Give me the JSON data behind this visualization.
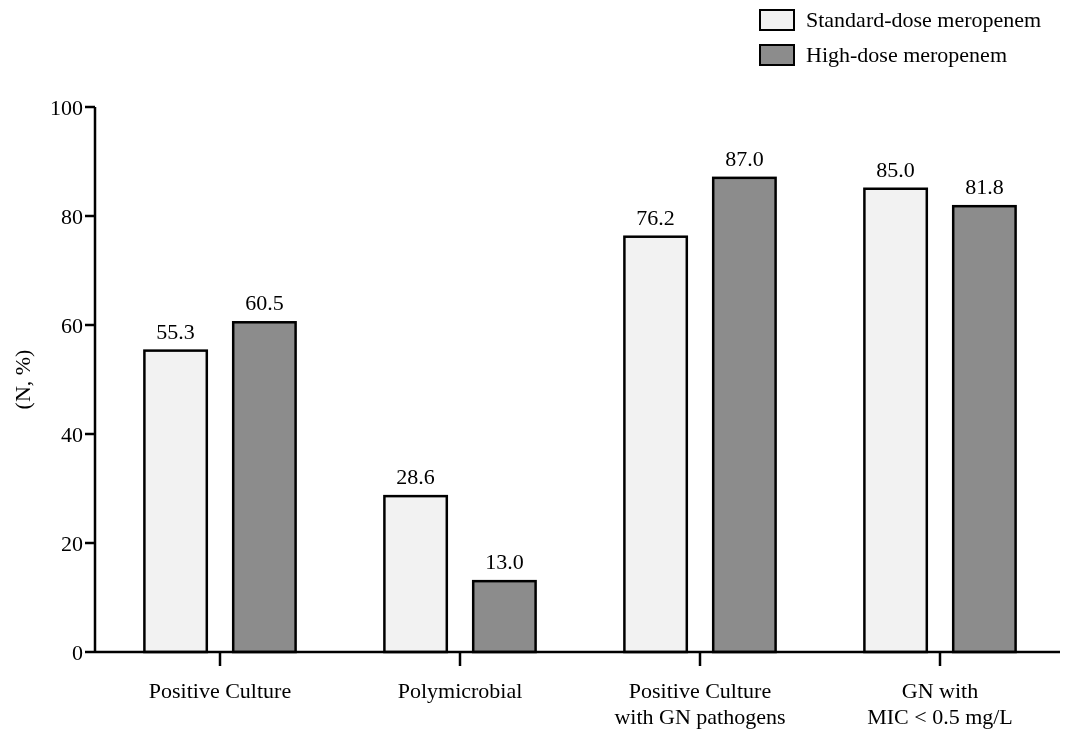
{
  "chart_data": {
    "type": "bar",
    "ylabel": "(N, %)",
    "categories": [
      "Positive Culture",
      "Polymicrobial",
      "Positive Culture\nwith GN pathogens",
      "GN with\nMIC < 0.5 mg/L"
    ],
    "series": [
      {
        "name": "Standard-dose meropenem",
        "color": "#f2f2f2",
        "values": [
          55.3,
          28.6,
          76.2,
          85.0
        ],
        "value_labels": [
          "55.3",
          "28.6",
          "76.2",
          "85.0"
        ]
      },
      {
        "name": "High-dose meropenem",
        "color": "#8c8c8c",
        "values": [
          60.5,
          13.0,
          87.0,
          81.8
        ],
        "value_labels": [
          "60.5",
          "13.0",
          "87.0",
          "81.8"
        ]
      }
    ],
    "ylim": [
      0,
      100
    ],
    "yticks": [
      0,
      20,
      40,
      60,
      80,
      100
    ],
    "grid": false,
    "legend": "top right"
  }
}
